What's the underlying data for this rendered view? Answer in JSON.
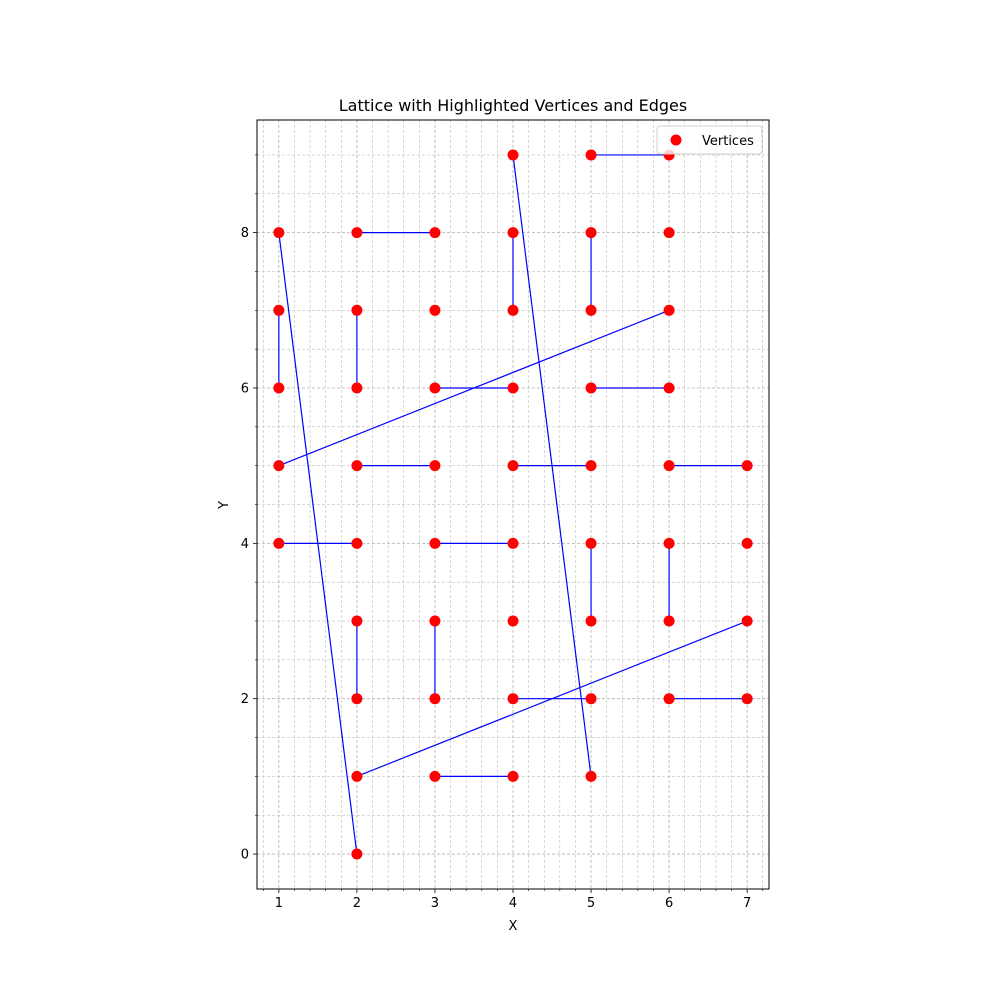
{
  "chart_data": {
    "type": "scatter",
    "title": "Lattice with Highlighted Vertices and Edges",
    "xlabel": "X",
    "ylabel": "Y",
    "xlim": [
      0.72,
      7.28
    ],
    "ylim": [
      -0.45,
      9.45
    ],
    "xticks": [
      1,
      2,
      3,
      4,
      5,
      6,
      7
    ],
    "yticks": [
      0,
      2,
      4,
      6,
      8
    ],
    "xtick_labels": [
      "1",
      "2",
      "3",
      "4",
      "5",
      "6",
      "7"
    ],
    "ytick_labels": [
      "0",
      "2",
      "4",
      "6",
      "8"
    ],
    "x_minor_step": 0.2,
    "y_minor_step": 0.5,
    "grid": true,
    "legend_placement": "top-right",
    "vertex_color": "#ff0000",
    "edge_color": "#0000ff",
    "grid_color": "#b0b0b0",
    "series": [
      {
        "name": "Vertices",
        "points": [
          [
            1,
            8
          ],
          [
            1,
            7
          ],
          [
            1,
            6
          ],
          [
            1,
            5
          ],
          [
            1,
            4
          ],
          [
            2,
            8
          ],
          [
            2,
            7
          ],
          [
            2,
            6
          ],
          [
            2,
            5
          ],
          [
            2,
            4
          ],
          [
            2,
            3
          ],
          [
            2,
            2
          ],
          [
            2,
            1
          ],
          [
            2,
            0
          ],
          [
            3,
            8
          ],
          [
            3,
            7
          ],
          [
            3,
            6
          ],
          [
            3,
            5
          ],
          [
            3,
            4
          ],
          [
            3,
            3
          ],
          [
            3,
            2
          ],
          [
            3,
            1
          ],
          [
            4,
            9
          ],
          [
            4,
            8
          ],
          [
            4,
            7
          ],
          [
            4,
            6
          ],
          [
            4,
            5
          ],
          [
            4,
            4
          ],
          [
            4,
            3
          ],
          [
            4,
            2
          ],
          [
            4,
            1
          ],
          [
            5,
            9
          ],
          [
            5,
            8
          ],
          [
            5,
            7
          ],
          [
            5,
            6
          ],
          [
            5,
            5
          ],
          [
            5,
            4
          ],
          [
            5,
            3
          ],
          [
            5,
            2
          ],
          [
            5,
            1
          ],
          [
            6,
            9
          ],
          [
            6,
            8
          ],
          [
            6,
            7
          ],
          [
            6,
            6
          ],
          [
            6,
            5
          ],
          [
            6,
            4
          ],
          [
            6,
            3
          ],
          [
            6,
            2
          ],
          [
            7,
            5
          ],
          [
            7,
            4
          ],
          [
            7,
            3
          ],
          [
            7,
            2
          ]
        ]
      }
    ],
    "edges": [
      [
        [
          5,
          9
        ],
        [
          6,
          9
        ]
      ],
      [
        [
          2,
          8
        ],
        [
          3,
          8
        ]
      ],
      [
        [
          4,
          8
        ],
        [
          4,
          7
        ]
      ],
      [
        [
          5,
          8
        ],
        [
          5,
          7
        ]
      ],
      [
        [
          1,
          7
        ],
        [
          1,
          6
        ]
      ],
      [
        [
          2,
          7
        ],
        [
          2,
          6
        ]
      ],
      [
        [
          3,
          6
        ],
        [
          4,
          6
        ]
      ],
      [
        [
          5,
          6
        ],
        [
          6,
          6
        ]
      ],
      [
        [
          2,
          5
        ],
        [
          3,
          5
        ]
      ],
      [
        [
          4,
          5
        ],
        [
          5,
          5
        ]
      ],
      [
        [
          6,
          5
        ],
        [
          7,
          5
        ]
      ],
      [
        [
          1,
          4
        ],
        [
          2,
          4
        ]
      ],
      [
        [
          3,
          4
        ],
        [
          4,
          4
        ]
      ],
      [
        [
          5,
          4
        ],
        [
          5,
          3
        ]
      ],
      [
        [
          6,
          4
        ],
        [
          6,
          3
        ]
      ],
      [
        [
          2,
          3
        ],
        [
          2,
          2
        ]
      ],
      [
        [
          3,
          3
        ],
        [
          3,
          2
        ]
      ],
      [
        [
          4,
          2
        ],
        [
          5,
          2
        ]
      ],
      [
        [
          6,
          2
        ],
        [
          7,
          2
        ]
      ],
      [
        [
          3,
          1
        ],
        [
          4,
          1
        ]
      ],
      [
        [
          1,
          8
        ],
        [
          2,
          0
        ]
      ],
      [
        [
          4,
          9
        ],
        [
          5,
          1
        ]
      ],
      [
        [
          1,
          5
        ],
        [
          6,
          7
        ]
      ],
      [
        [
          2,
          1
        ],
        [
          7,
          3
        ]
      ]
    ]
  }
}
